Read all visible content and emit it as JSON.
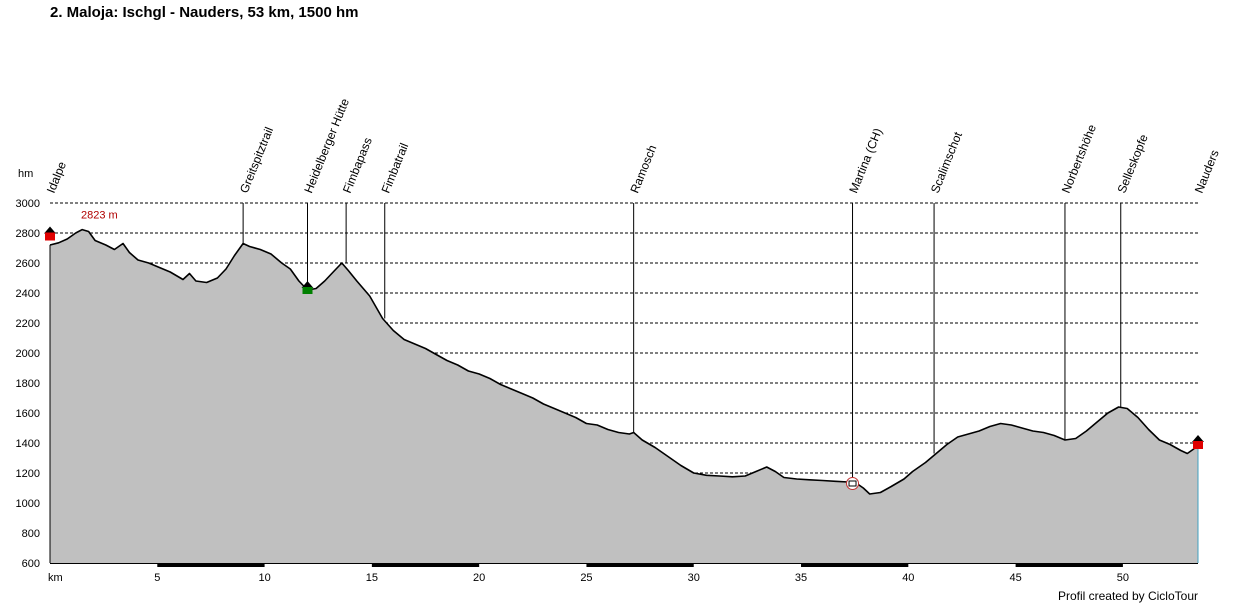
{
  "title": "2. Maloja: Ischgl - Nauders, 53 km, 1500 hm",
  "footer": "Profil created by CicloTour",
  "colors": {
    "fill": "#c0c0c0",
    "line": "#000000",
    "grid": "#000000",
    "maxLabel": "#b00000",
    "startMarker": "#e00000",
    "hutMarker": "#008000",
    "endCap": "#40a0c0"
  },
  "chart_data": {
    "type": "area",
    "title": "2. Maloja: Ischgl - Nauders, 53 km, 1500 hm",
    "xlabel": "km",
    "ylabel": "hm",
    "xlim": [
      0,
      53.5
    ],
    "ylim": [
      600,
      3000
    ],
    "xticks": [
      5,
      10,
      15,
      20,
      25,
      30,
      35,
      40,
      45,
      50
    ],
    "yticks": [
      600,
      800,
      1000,
      1200,
      1400,
      1600,
      1800,
      2000,
      2200,
      2400,
      2600,
      2800,
      3000
    ],
    "grid": true,
    "max_label": "2823 m",
    "max_point": {
      "x": 1.4,
      "y": 2823
    },
    "profile": [
      [
        0,
        2720
      ],
      [
        0.4,
        2735
      ],
      [
        0.8,
        2760
      ],
      [
        1.2,
        2800
      ],
      [
        1.5,
        2823
      ],
      [
        1.8,
        2810
      ],
      [
        2.1,
        2750
      ],
      [
        2.6,
        2720
      ],
      [
        3.0,
        2690
      ],
      [
        3.4,
        2730
      ],
      [
        3.7,
        2670
      ],
      [
        4.1,
        2620
      ],
      [
        4.6,
        2600
      ],
      [
        5.1,
        2570
      ],
      [
        5.6,
        2540
      ],
      [
        6.2,
        2490
      ],
      [
        6.5,
        2530
      ],
      [
        6.8,
        2480
      ],
      [
        7.3,
        2470
      ],
      [
        7.8,
        2500
      ],
      [
        8.2,
        2560
      ],
      [
        8.6,
        2650
      ],
      [
        9.0,
        2730
      ],
      [
        9.3,
        2710
      ],
      [
        9.8,
        2690
      ],
      [
        10.3,
        2660
      ],
      [
        10.8,
        2600
      ],
      [
        11.2,
        2560
      ],
      [
        11.6,
        2480
      ],
      [
        12.0,
        2420
      ],
      [
        12.4,
        2430
      ],
      [
        12.8,
        2480
      ],
      [
        13.2,
        2540
      ],
      [
        13.6,
        2600
      ],
      [
        13.9,
        2550
      ],
      [
        14.3,
        2480
      ],
      [
        14.9,
        2380
      ],
      [
        15.5,
        2230
      ],
      [
        16.0,
        2150
      ],
      [
        16.5,
        2090
      ],
      [
        17.0,
        2060
      ],
      [
        17.5,
        2030
      ],
      [
        18.0,
        1990
      ],
      [
        18.5,
        1950
      ],
      [
        19.0,
        1920
      ],
      [
        19.5,
        1880
      ],
      [
        20.0,
        1860
      ],
      [
        20.5,
        1830
      ],
      [
        21.0,
        1790
      ],
      [
        21.5,
        1760
      ],
      [
        22.0,
        1730
      ],
      [
        22.5,
        1700
      ],
      [
        23.0,
        1660
      ],
      [
        23.5,
        1630
      ],
      [
        24.0,
        1600
      ],
      [
        24.5,
        1570
      ],
      [
        25.0,
        1530
      ],
      [
        25.5,
        1520
      ],
      [
        26.0,
        1490
      ],
      [
        26.5,
        1470
      ],
      [
        27.0,
        1460
      ],
      [
        27.2,
        1470
      ],
      [
        27.6,
        1420
      ],
      [
        28.2,
        1370
      ],
      [
        28.8,
        1310
      ],
      [
        29.4,
        1250
      ],
      [
        30.0,
        1200
      ],
      [
        30.6,
        1185
      ],
      [
        31.2,
        1180
      ],
      [
        31.8,
        1175
      ],
      [
        32.4,
        1180
      ],
      [
        32.9,
        1210
      ],
      [
        33.4,
        1240
      ],
      [
        33.8,
        1210
      ],
      [
        34.2,
        1170
      ],
      [
        34.8,
        1160
      ],
      [
        35.4,
        1155
      ],
      [
        36.0,
        1150
      ],
      [
        36.6,
        1145
      ],
      [
        37.2,
        1140
      ],
      [
        37.6,
        1130
      ],
      [
        37.9,
        1100
      ],
      [
        38.2,
        1060
      ],
      [
        38.7,
        1070
      ],
      [
        39.2,
        1110
      ],
      [
        39.8,
        1160
      ],
      [
        40.2,
        1210
      ],
      [
        40.8,
        1270
      ],
      [
        41.3,
        1330
      ],
      [
        41.8,
        1390
      ],
      [
        42.3,
        1440
      ],
      [
        42.8,
        1460
      ],
      [
        43.3,
        1480
      ],
      [
        43.8,
        1510
      ],
      [
        44.3,
        1530
      ],
      [
        44.8,
        1520
      ],
      [
        45.3,
        1500
      ],
      [
        45.8,
        1480
      ],
      [
        46.3,
        1470
      ],
      [
        46.8,
        1450
      ],
      [
        47.3,
        1420
      ],
      [
        47.8,
        1430
      ],
      [
        48.3,
        1480
      ],
      [
        48.8,
        1540
      ],
      [
        49.3,
        1600
      ],
      [
        49.8,
        1640
      ],
      [
        50.2,
        1630
      ],
      [
        50.7,
        1570
      ],
      [
        51.2,
        1490
      ],
      [
        51.7,
        1420
      ],
      [
        52.2,
        1390
      ],
      [
        52.7,
        1350
      ],
      [
        53.0,
        1330
      ],
      [
        53.3,
        1360
      ],
      [
        53.5,
        1390
      ]
    ],
    "waypoints": [
      {
        "label": "Idalpe",
        "x": 0.0,
        "y": 2790,
        "marker": "start"
      },
      {
        "label": "Greitspitztrail",
        "x": 9.0,
        "y": 2730,
        "marker": "none"
      },
      {
        "label": "Heidelberger Hütte",
        "x": 12.0,
        "y": 2420,
        "marker": "hut"
      },
      {
        "label": "Fimbapass",
        "x": 13.8,
        "y": 2600,
        "marker": "none"
      },
      {
        "label": "Fimbatrail",
        "x": 15.6,
        "y": 2230,
        "marker": "none"
      },
      {
        "label": "Ramosch",
        "x": 27.2,
        "y": 1470,
        "marker": "none"
      },
      {
        "label": "Martina (CH)",
        "x": 37.4,
        "y": 1130,
        "marker": "town"
      },
      {
        "label": "Scalimschot",
        "x": 41.2,
        "y": 1330,
        "marker": "none"
      },
      {
        "label": "Norbertshöhe",
        "x": 47.3,
        "y": 1420,
        "marker": "none"
      },
      {
        "label": "Selleskopfe",
        "x": 49.9,
        "y": 1640,
        "marker": "none"
      },
      {
        "label": "Nauders",
        "x": 53.5,
        "y": 1400,
        "marker": "end"
      }
    ]
  }
}
